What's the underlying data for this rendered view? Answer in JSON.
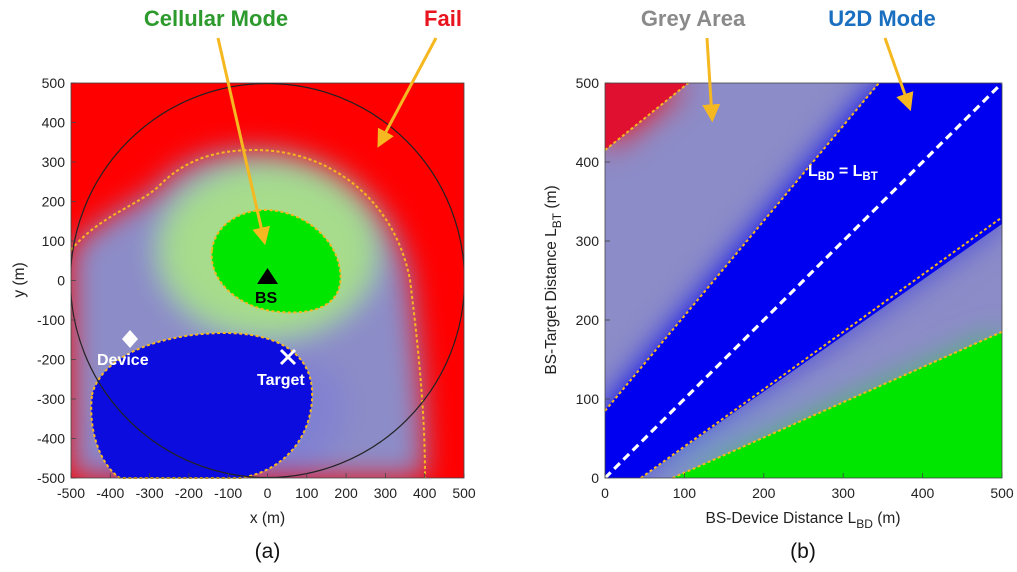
{
  "colors": {
    "cellular": "#00e600",
    "grey": "#8c8cc8",
    "u2d": "#0000f0",
    "fail": "#ff0000",
    "boundary": "#f5b820",
    "arrow": "#f5b820",
    "head_cellular": "#2c9a2c",
    "head_fail": "#e8141e",
    "head_grey": "#8a8a8a",
    "head_u2d": "#1a6fc0"
  },
  "annotations": {
    "cellular_mode": "Cellular Mode",
    "fail": "Fail",
    "grey_area": "Grey Area",
    "u2d_mode": "U2D Mode"
  },
  "chart_data": [
    {
      "type": "heatmap",
      "panel_label": "(a)",
      "xlabel": "x (m)",
      "ylabel": "y (m)",
      "xlim": [
        -500,
        500
      ],
      "ylim": [
        -500,
        500
      ],
      "xticks": [
        -500,
        -400,
        -300,
        -200,
        -100,
        0,
        100,
        200,
        300,
        400,
        500
      ],
      "yticks": [
        -500,
        -400,
        -300,
        -200,
        -100,
        0,
        100,
        200,
        300,
        400,
        500
      ],
      "coverage_radius": 500,
      "regions": [
        "Cellular Mode",
        "Grey Area",
        "U2D Mode",
        "Fail"
      ],
      "markers": [
        {
          "name": "BS",
          "x": 0,
          "y": 0,
          "symbol": "triangle"
        },
        {
          "name": "Device",
          "x": -350,
          "y": -150,
          "symbol": "diamond"
        },
        {
          "name": "Target",
          "x": 50,
          "y": -200,
          "symbol": "x"
        }
      ]
    },
    {
      "type": "heatmap",
      "panel_label": "(b)",
      "xlabel_main": "BS-Device Distance L",
      "xlabel_sub": "BD",
      "xlabel_unit": " (m)",
      "ylabel_main": "BS-Target Distance L",
      "ylabel_sub": "BT",
      "ylabel_unit": " (m)",
      "xlim": [
        0,
        500
      ],
      "ylim": [
        0,
        500
      ],
      "xticks": [
        0,
        100,
        200,
        300,
        400,
        500
      ],
      "yticks": [
        0,
        100,
        200,
        300,
        400,
        500
      ],
      "diagonal_label": {
        "l1": "L",
        "s1": "BD",
        "eq": " = L",
        "s2": "BT"
      },
      "boundaries": [
        {
          "from": [
            0,
            415
          ],
          "to": [
            105,
            500
          ]
        },
        {
          "from": [
            0,
            85
          ],
          "to": [
            345,
            500
          ]
        },
        {
          "from": [
            45,
            0
          ],
          "to": [
            500,
            330
          ]
        },
        {
          "from": [
            85,
            0
          ],
          "to": [
            500,
            185
          ]
        }
      ],
      "diagonal": {
        "from": [
          0,
          0
        ],
        "to": [
          500,
          500
        ]
      }
    }
  ]
}
